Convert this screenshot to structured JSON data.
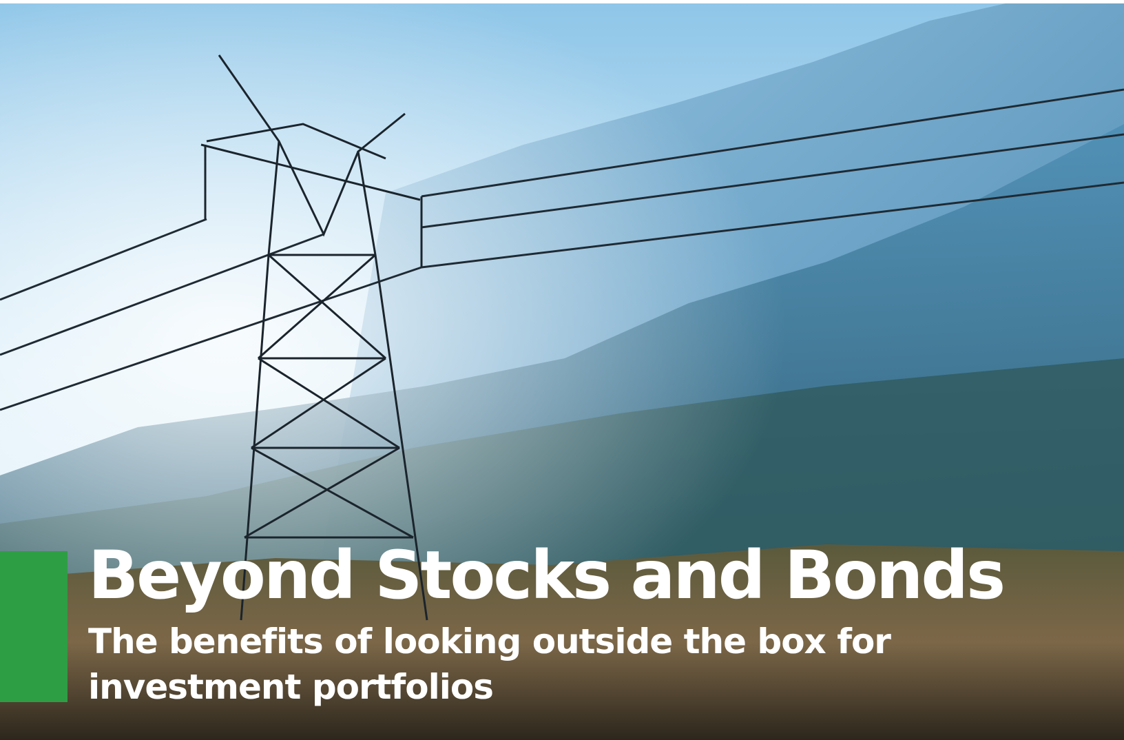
{
  "hero": {
    "title": "Beyond Stocks and Bonds",
    "subtitle": [
      "The benefits of looking outside the box for",
      "investment portfolios"
    ]
  }
}
